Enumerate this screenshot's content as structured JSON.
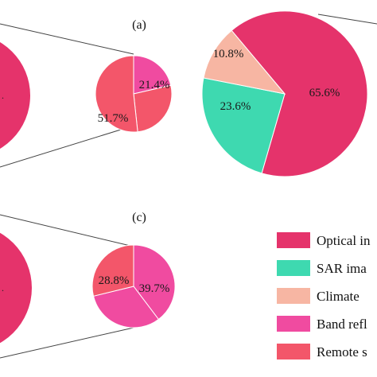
{
  "colors": {
    "optical": "#E5336B",
    "sar": "#3ED9B0",
    "climate": "#F7B6A3",
    "band": "#F04BA0",
    "remote": "#F3566A",
    "edge": "#ffffff",
    "connector": "#444444"
  },
  "chart_data": [
    {
      "panel": "(a)",
      "type": "pie",
      "title": "(a)",
      "charts": [
        {
          "slices": [
            {
              "label": "Optical in",
              "value": null
            }
          ]
        },
        {
          "slices": [
            {
              "label": "Band refl",
              "value": 21.4,
              "text": "21.4%"
            },
            {
              "label": "Remote s",
              "value": 26.9,
              "text": ""
            },
            {
              "label": "Remote s",
              "value": 51.7,
              "text": "51.7%"
            }
          ]
        },
        {
          "slices": [
            {
              "label": "Optical in",
              "value": 65.6,
              "text": "65.6%"
            },
            {
              "label": "SAR ima",
              "value": 23.6,
              "text": "23.6%"
            },
            {
              "label": "Climate",
              "value": 10.8,
              "text": "10.8%"
            }
          ]
        }
      ]
    },
    {
      "panel": "(c)",
      "type": "pie",
      "title": "(c)",
      "charts": [
        {
          "slices": [
            {
              "label": "Optical in",
              "value": null
            }
          ]
        },
        {
          "slices": [
            {
              "label": "Band refl",
              "value": 39.7,
              "text": "39.7%"
            },
            {
              "label": "Band refl",
              "value": 31.5,
              "text": ""
            },
            {
              "label": "Remote s",
              "value": 28.8,
              "text": "28.8%"
            }
          ]
        }
      ]
    }
  ],
  "legend": {
    "placement": "bottom-right",
    "items": [
      {
        "key": "optical",
        "label": "Optical in"
      },
      {
        "key": "sar",
        "label": "SAR ima"
      },
      {
        "key": "climate",
        "label": "Climate"
      },
      {
        "key": "band",
        "label": "Band refl"
      },
      {
        "key": "remote",
        "label": "Remote s"
      }
    ]
  }
}
